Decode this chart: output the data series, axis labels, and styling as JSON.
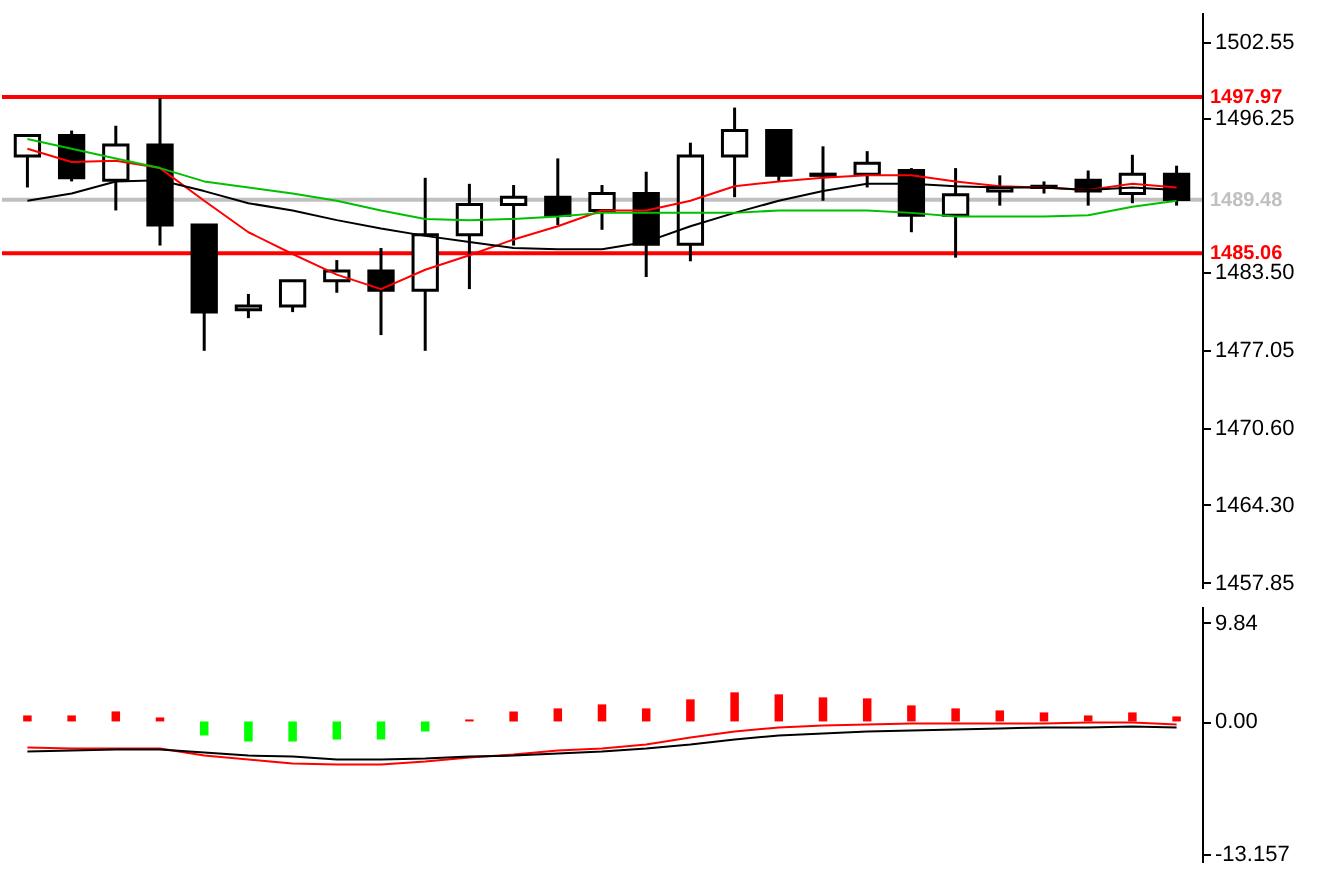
{
  "chart_data": [
    {
      "type": "candlestick",
      "categories": [
        null,
        null,
        null,
        null,
        null,
        null,
        null,
        null,
        null,
        null,
        null,
        null,
        null,
        null,
        null,
        null,
        null,
        null,
        null,
        null,
        null,
        null,
        null,
        null,
        null,
        null,
        null
      ],
      "ohlc": [
        [
          1493.1,
          1494.9,
          1490.5,
          1494.8
        ],
        [
          1494.8,
          1495.2,
          1491.0,
          1491.3
        ],
        [
          1491.1,
          1495.6,
          1488.6,
          1494.0
        ],
        [
          1494.0,
          1497.9,
          1485.7,
          1487.4
        ],
        [
          1487.4,
          1487.4,
          1477.0,
          1480.2
        ],
        [
          1480.4,
          1481.7,
          1479.7,
          1480.7
        ],
        [
          1480.7,
          1482.8,
          1480.2,
          1482.8
        ],
        [
          1482.8,
          1484.5,
          1481.8,
          1483.6
        ],
        [
          1483.6,
          1485.5,
          1478.3,
          1482.0
        ],
        [
          1482.0,
          1491.3,
          1477.0,
          1486.6
        ],
        [
          1486.6,
          1490.8,
          1482.1,
          1489.1
        ],
        [
          1489.1,
          1490.7,
          1485.7,
          1489.7
        ],
        [
          1489.7,
          1492.9,
          1487.4,
          1488.2
        ],
        [
          1488.6,
          1490.7,
          1487.0,
          1490.0
        ],
        [
          1490.0,
          1491.8,
          1483.1,
          1485.8
        ],
        [
          1485.8,
          1494.2,
          1484.4,
          1493.1
        ],
        [
          1493.1,
          1497.1,
          1489.7,
          1495.2
        ],
        [
          1495.2,
          1495.3,
          1491.0,
          1491.5
        ],
        [
          1491.5,
          1493.9,
          1489.4,
          1491.6
        ],
        [
          1491.6,
          1493.5,
          1490.5,
          1492.5
        ],
        [
          1491.9,
          1492.1,
          1486.8,
          1488.2
        ],
        [
          1488.2,
          1492.1,
          1484.7,
          1489.9
        ],
        [
          1490.2,
          1491.5,
          1489.0,
          1490.5
        ],
        [
          1490.5,
          1491.0,
          1490.0,
          1490.6
        ],
        [
          1491.1,
          1491.9,
          1489.0,
          1490.2
        ],
        [
          1490.0,
          1493.2,
          1489.2,
          1491.6
        ],
        [
          1491.6,
          1492.3,
          1489.0,
          1489.5
        ]
      ],
      "series": [
        {
          "type": "line",
          "color": "#ff0000",
          "values": [
            1493.7,
            1492.6,
            1492.7,
            1492.1,
            1489.4,
            1486.8,
            1485.0,
            1483.3,
            1482.1,
            1483.7,
            1484.9,
            1486.2,
            1487.3,
            1488.6,
            1488.6,
            1489.4,
            1490.6,
            1491.0,
            1491.3,
            1491.5,
            1491.5,
            1491.0,
            1490.6,
            1490.5,
            1490.3,
            1490.8,
            1490.5
          ]
        },
        {
          "type": "line",
          "color": "#000000",
          "values": [
            1489.4,
            1490.0,
            1491.0,
            1491.1,
            1490.2,
            1489.2,
            1488.6,
            1487.8,
            1487.1,
            1486.5,
            1486.0,
            1485.5,
            1485.4,
            1485.4,
            1486.0,
            1487.3,
            1488.4,
            1489.4,
            1490.2,
            1490.8,
            1490.8,
            1490.6,
            1490.5,
            1490.5,
            1490.3,
            1490.5,
            1490.3
          ]
        },
        {
          "type": "line",
          "color": "#00c000",
          "values": [
            1494.5,
            1493.7,
            1492.9,
            1492.1,
            1491.0,
            1490.5,
            1490.0,
            1489.4,
            1488.6,
            1487.9,
            1487.8,
            1487.9,
            1488.1,
            1488.4,
            1488.4,
            1488.4,
            1488.4,
            1488.6,
            1488.6,
            1488.6,
            1488.4,
            1488.1,
            1488.1,
            1488.1,
            1488.2,
            1488.9,
            1489.4
          ]
        }
      ],
      "ylim": [
        1457.4,
        1505.0
      ],
      "yticks": [
        1502.55,
        1496.25,
        {
          "value": 1483.5,
          "label": "1483.50"
        },
        1477.05,
        {
          "value": 1470.6,
          "label": "1470.60"
        },
        {
          "value": 1464.3,
          "label": "1464.30"
        },
        1457.85
      ],
      "ref_lines": [
        {
          "axis": "y",
          "value": 1497.97,
          "label": "1497.97",
          "color": "#ff0000"
        },
        {
          "axis": "y",
          "value": 1489.48,
          "label": "1489.48",
          "color": "#c0c0c0"
        },
        {
          "axis": "y",
          "value": 1485.06,
          "label": "1485.06",
          "color": "#ff0000"
        }
      ],
      "tick_labels": "y"
    },
    {
      "type": "bar",
      "categories": [
        null,
        null,
        null,
        null,
        null,
        null,
        null,
        null,
        null,
        null,
        null,
        null,
        null,
        null,
        null,
        null,
        null,
        null,
        null,
        null,
        null,
        null,
        null,
        null,
        null,
        null,
        null
      ],
      "series": [
        {
          "type": "bar",
          "colors": [
            "#ff0000",
            "#ff0000",
            "#ff0000",
            "#ff0000",
            "#00ff00",
            "#00ff00",
            "#00ff00",
            "#00ff00",
            "#00ff00",
            "#00ff00",
            "#ff0000",
            "#ff0000",
            "#ff0000",
            "#ff0000",
            "#ff0000",
            "#ff0000",
            "#ff0000",
            "#ff0000",
            "#ff0000",
            "#ff0000",
            "#ff0000",
            "#ff0000",
            "#ff0000",
            "#ff0000",
            "#ff0000",
            "#ff0000",
            "#ff0000"
          ],
          "values": [
            0.6,
            0.6,
            1.0,
            0.4,
            -1.4,
            -2.0,
            -2.0,
            -1.8,
            -1.8,
            -1.0,
            0.2,
            1.0,
            1.3,
            1.7,
            1.3,
            2.2,
            2.9,
            2.7,
            2.4,
            2.3,
            1.6,
            1.3,
            1.1,
            0.9,
            0.6,
            0.9,
            0.5
          ]
        },
        {
          "type": "line",
          "color": "#ff0000",
          "values": [
            -2.6,
            -2.7,
            -2.7,
            -2.7,
            -3.4,
            -3.8,
            -4.2,
            -4.3,
            -4.3,
            -4.0,
            -3.6,
            -3.3,
            -2.9,
            -2.7,
            -2.3,
            -1.6,
            -1.0,
            -0.6,
            -0.4,
            -0.3,
            -0.2,
            -0.2,
            -0.2,
            -0.2,
            -0.1,
            -0.1,
            -0.3
          ]
        },
        {
          "type": "line",
          "color": "#000000",
          "values": [
            -3.0,
            -2.9,
            -2.8,
            -2.8,
            -3.1,
            -3.4,
            -3.5,
            -3.8,
            -3.8,
            -3.7,
            -3.5,
            -3.4,
            -3.2,
            -3.0,
            -2.7,
            -2.3,
            -1.8,
            -1.4,
            -1.2,
            -1.0,
            -0.9,
            -0.8,
            -0.7,
            -0.6,
            -0.6,
            -0.5,
            -0.6
          ]
        }
      ],
      "ylim": [
        -14.0,
        11.5
      ],
      "yticks": [
        9.84,
        {
          "value": 0,
          "label": "0.00"
        },
        -13.157
      ],
      "tick_labels": "y"
    }
  ]
}
